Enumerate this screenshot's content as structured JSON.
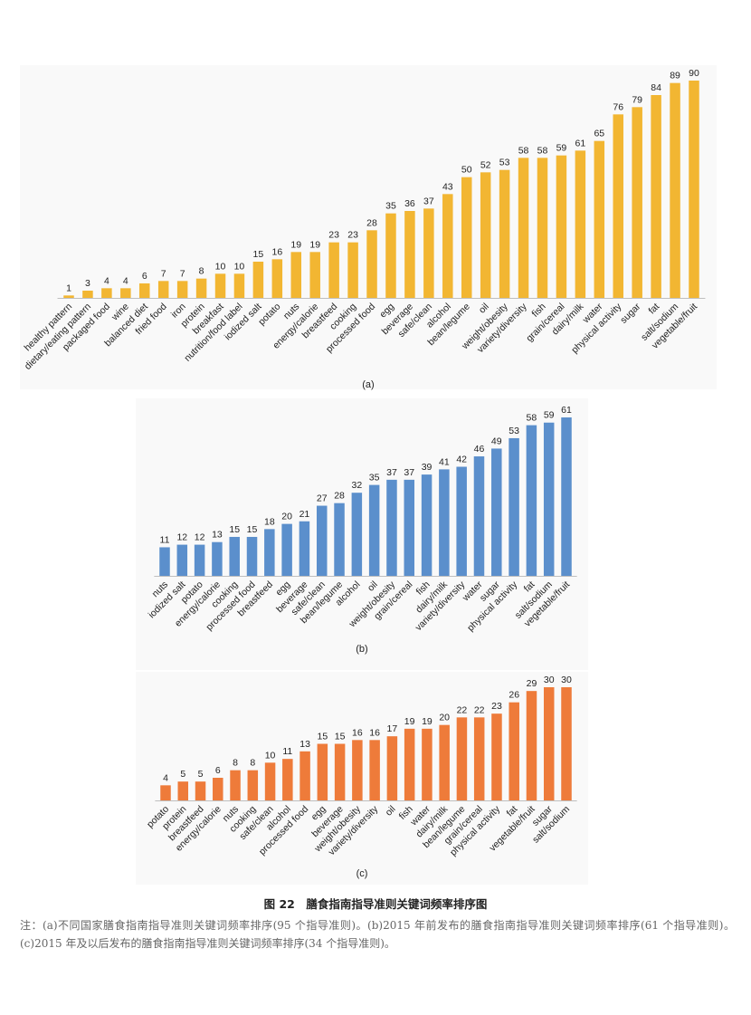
{
  "chart_data": [
    {
      "type": "bar",
      "panel_label": "(a)",
      "color": "#f2b632",
      "categories": [
        "healthy pattern",
        "dietary/eating pattern",
        "packaged food",
        "wine",
        "balanced diet",
        "fried food",
        "iron",
        "protein",
        "breakfast",
        "nutrition/food label",
        "iodized salt",
        "potato",
        "nuts",
        "energy/calorie",
        "breastfeed",
        "cooking",
        "processed food",
        "egg",
        "beverage",
        "safe/clean",
        "alcohol",
        "bean/legume",
        "oil",
        "weight/obesity",
        "variety/diversity",
        "fish",
        "grain/cereal",
        "dairy/milk",
        "water",
        "physical activity",
        "sugar",
        "fat",
        "salt/sodium",
        "vegetable/fruit"
      ],
      "values": [
        1,
        3,
        4,
        4,
        6,
        7,
        7,
        8,
        10,
        10,
        15,
        16,
        19,
        19,
        23,
        23,
        28,
        35,
        36,
        37,
        43,
        50,
        52,
        53,
        58,
        58,
        59,
        61,
        65,
        76,
        79,
        84,
        89,
        90
      ],
      "ylim": [
        0,
        90
      ]
    },
    {
      "type": "bar",
      "panel_label": "(b)",
      "color": "#5b8fcc",
      "categories": [
        "nuts",
        "iodized salt",
        "potato",
        "energy/calorie",
        "cooking",
        "processed food",
        "breastfeed",
        "egg",
        "beverage",
        "safe/clean",
        "bean/legume",
        "alcohol",
        "oil",
        "weight/obesity",
        "grain/cereal",
        "fish",
        "dairy/milk",
        "variety/diversity",
        "water",
        "sugar",
        "physical activity",
        "fat",
        "salt/sodium",
        "vegetable/fruit"
      ],
      "values": [
        11,
        12,
        12,
        13,
        15,
        15,
        18,
        20,
        21,
        27,
        28,
        32,
        35,
        37,
        37,
        39,
        41,
        42,
        46,
        49,
        53,
        58,
        59,
        61
      ],
      "ylim": [
        0,
        61
      ]
    },
    {
      "type": "bar",
      "panel_label": "(c)",
      "color": "#ee7b3a",
      "categories": [
        "potato",
        "protein",
        "breastfeed",
        "energy/calorie",
        "nuts",
        "cooking",
        "safe/clean",
        "alcohol",
        "processed food",
        "egg",
        "beverage",
        "weight/obesity",
        "variety/diversity",
        "oil",
        "fish",
        "water",
        "dairy/milk",
        "bean/legume",
        "grain/cereal",
        "physical activity",
        "fat",
        "vegetable/fruit",
        "sugar",
        "salt/sodium"
      ],
      "values": [
        4,
        5,
        5,
        6,
        8,
        8,
        10,
        11,
        13,
        15,
        15,
        16,
        16,
        17,
        19,
        19,
        20,
        22,
        22,
        23,
        26,
        29,
        30,
        30
      ],
      "ylim": [
        0,
        30
      ]
    }
  ],
  "caption": {
    "title": "图 22　膳食指南指导准则关键词频率排序图",
    "note": "注：(a)不同国家膳食指南指导准则关键词频率排序(95 个指导准则)。(b)2015 年前发布的膳食指南指导准则关键词频率排序(61 个指导准则)。(c)2015 年及以后发布的膳食指南指导准则关键词频率排序(34 个指导准则)。"
  }
}
